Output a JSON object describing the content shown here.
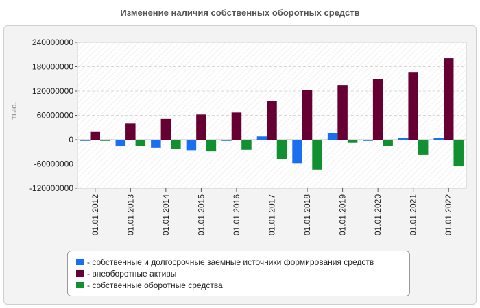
{
  "chart_data": {
    "type": "bar",
    "title": "Изменение наличия собственных оборотных средств",
    "ylabel": "тыс.",
    "xlabel": "",
    "categories": [
      "01.01.2012",
      "01.01.2013",
      "01.01.2014",
      "01.01.2015",
      "01.01.2016",
      "01.01.2017",
      "01.01.2018",
      "01.01.2019",
      "01.01.2020",
      "01.01.2021",
      "01.01.2022"
    ],
    "ylim": [
      -120000000,
      240000000
    ],
    "yticks": [
      240000000,
      180000000,
      120000000,
      60000000,
      0,
      -60000000,
      -120000000
    ],
    "ytick_labels": [
      "240000000",
      "180000000",
      "120000000",
      "60000000",
      "0",
      "-60000000",
      "-120000000"
    ],
    "grid": true,
    "legend_position": "bottom",
    "series": [
      {
        "name": "- собственные и долгосрочные заемные источники формирования средств",
        "color": "#1a6ff0",
        "values": [
          -3000000,
          -17000000,
          -20000000,
          -26000000,
          -3000000,
          8000000,
          -58000000,
          16000000,
          -3000000,
          5000000,
          4000000
        ]
      },
      {
        "name": "- внеоборотные активы",
        "color": "#660033",
        "values": [
          19000000,
          40000000,
          51000000,
          62000000,
          67000000,
          96000000,
          123000000,
          135000000,
          150000000,
          167000000,
          201000000
        ]
      },
      {
        "name": "- собственные оборотные средства",
        "color": "#109030",
        "values": [
          -3000000,
          -16000000,
          -22000000,
          -29000000,
          -25000000,
          -49000000,
          -74000000,
          -8000000,
          -16000000,
          -37000000,
          -66000000
        ]
      }
    ]
  }
}
